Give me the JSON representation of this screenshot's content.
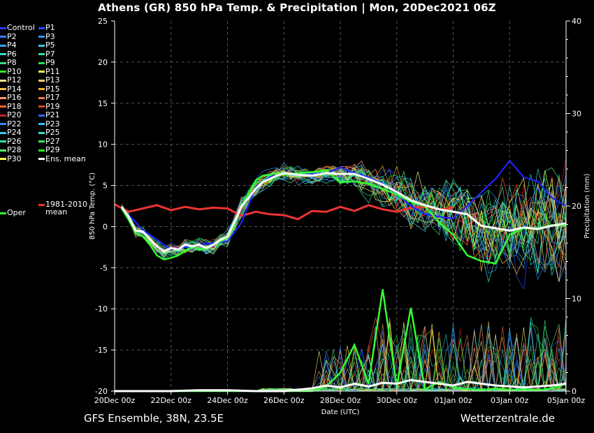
{
  "header": {
    "title": "Athens  (GR)  850 hPa Temp. & Precipitation | Mon, 20Dec2021 06Z"
  },
  "footer": {
    "left": "GFS Ensemble, 38N, 23.5E",
    "right": "Wetterzentrale.de"
  },
  "chart_data": {
    "type": "line",
    "title": "Athens  (GR)  850 hPa Temp. & Precipitation | Mon, 20Dec2021 06Z",
    "xlabel": "Date (UTC)",
    "ylabel": "850 hPa Temp. (°C)",
    "y2label": "Precipitation (mm)",
    "x_ticks": [
      "20Dec 00z",
      "22Dec 00z",
      "24Dec 00z",
      "26Dec 00z",
      "28Dec 00z",
      "30Dec 00z",
      "01Jan 00z",
      "03Jan 00z",
      "05Jan 00z"
    ],
    "xlim_days": [
      0,
      16
    ],
    "ylim": [
      -20,
      25
    ],
    "y_ticks": [
      25,
      20,
      15,
      10,
      5,
      0,
      -5,
      -10,
      -15,
      -20
    ],
    "y2lim": [
      0,
      40
    ],
    "y2_ticks": [
      40,
      30,
      20,
      10,
      0
    ],
    "grid": true,
    "legend_placement": "left-outside",
    "colors": {
      "ens_mean": "#ffffff",
      "oper": "#33ff33",
      "climate": "#ee3333",
      "control": "#2222ff"
    },
    "legend": [
      {
        "label": "Control",
        "color": "#3333ff"
      },
      {
        "label": "P1",
        "color": "#2a4bff"
      },
      {
        "label": "P2",
        "color": "#3a7bff"
      },
      {
        "label": "P3",
        "color": "#3399ff"
      },
      {
        "label": "P4",
        "color": "#33aaee"
      },
      {
        "label": "P5",
        "color": "#33ccdd"
      },
      {
        "label": "P6",
        "color": "#33ddbb"
      },
      {
        "label": "P7",
        "color": "#33ddaa"
      },
      {
        "label": "P8",
        "color": "#33dd88"
      },
      {
        "label": "P9",
        "color": "#33dd55"
      },
      {
        "label": "P10",
        "color": "#33ee22"
      },
      {
        "label": "P11",
        "color": "#ffff55"
      },
      {
        "label": "P12",
        "color": "#ffee88"
      },
      {
        "label": "P13",
        "color": "#ffcc66"
      },
      {
        "label": "P14",
        "color": "#ffbb44"
      },
      {
        "label": "P15",
        "color": "#ffaa33"
      },
      {
        "label": "P16",
        "color": "#ff9966"
      },
      {
        "label": "P17",
        "color": "#ff7744"
      },
      {
        "label": "P18",
        "color": "#ff6633"
      },
      {
        "label": "P19",
        "color": "#dd4422"
      },
      {
        "label": "P20",
        "color": "#cc2222"
      },
      {
        "label": "P21",
        "color": "#3366ff"
      },
      {
        "label": "P22",
        "color": "#3388ff"
      },
      {
        "label": "P23",
        "color": "#33bbff"
      },
      {
        "label": "P24",
        "color": "#33ccee"
      },
      {
        "label": "P25",
        "color": "#33ddcc"
      },
      {
        "label": "P26",
        "color": "#33ddaa"
      },
      {
        "label": "P27",
        "color": "#33ee66"
      },
      {
        "label": "P28",
        "color": "#55ee77"
      },
      {
        "label": "P29",
        "color": "#22ee22"
      },
      {
        "label": "P30",
        "color": "#ffff44"
      },
      {
        "label": "Ens. mean",
        "color": "#ffffff"
      },
      {
        "label": "Oper",
        "color": "#33ff33"
      },
      {
        "label": "1981-2010 mean",
        "color": "#ee3333"
      }
    ],
    "legend_labels": {
      "climate_line1": "1981-2010",
      "climate_line2": "mean"
    },
    "ens_mean_temp": {
      "x": [
        0.25,
        0.5,
        0.75,
        1,
        1.25,
        1.5,
        1.75,
        2,
        2.25,
        2.5,
        2.75,
        3,
        3.25,
        3.5,
        3.75,
        4,
        4.25,
        4.5,
        4.75,
        5,
        5.25,
        5.5,
        5.75,
        6,
        6.5,
        7,
        7.5,
        8,
        8.5,
        9,
        9.5,
        10,
        10.5,
        11,
        11.5,
        12,
        12.5,
        13,
        13.5,
        14,
        14.5,
        15,
        15.5,
        16
      ],
      "y": [
        2.4,
        1.2,
        -0.5,
        -0.6,
        -1.5,
        -2.4,
        -3,
        -2.6,
        -2.8,
        -2.2,
        -2.4,
        -2.2,
        -2.6,
        -2.2,
        -1.6,
        -1.2,
        0.6,
        2.5,
        3.5,
        4.6,
        5.4,
        5.8,
        6.2,
        6.5,
        6.3,
        6.2,
        6.5,
        6.4,
        6.4,
        5.8,
        5.1,
        4.2,
        3.2,
        2.6,
        2.1,
        1.8,
        1.5,
        0.1,
        -0.2,
        -0.5,
        -0.1,
        -0.3,
        0.1,
        0.4
      ]
    },
    "oper_temp": {
      "x": [
        0.25,
        0.5,
        0.75,
        1,
        1.25,
        1.5,
        1.75,
        2,
        2.25,
        2.5,
        2.75,
        3,
        3.25,
        3.5,
        3.75,
        4,
        4.25,
        4.5,
        4.75,
        5,
        5.25,
        5.5,
        5.75,
        6,
        6.5,
        7,
        7.5,
        8,
        8.5,
        9,
        9.5,
        10,
        10.5,
        11,
        11.5,
        12,
        12.5,
        13,
        13.5,
        14,
        14.5,
        15,
        15.5,
        16
      ],
      "y": [
        2.2,
        0.8,
        -0.8,
        -1.2,
        -2.2,
        -3.5,
        -4,
        -3.8,
        -3.5,
        -3,
        -2.4,
        -2.8,
        -2.7,
        -2.2,
        -1.8,
        -1.4,
        0.2,
        2.6,
        4,
        5.6,
        6.2,
        6.3,
        6.5,
        6.3,
        6.5,
        6.6,
        6.8,
        5.4,
        5.5,
        5.2,
        4.6,
        3.9,
        3.0,
        2.5,
        0.5,
        -1.0,
        -3.5,
        -4.2,
        -4.5,
        -1.0,
        -0.2,
        -0.2,
        0.2,
        0.1
      ]
    },
    "control_temp": {
      "x": [
        0.25,
        1,
        2,
        3,
        4,
        4.5,
        5,
        5.5,
        6,
        6.5,
        7,
        7.5,
        8,
        8.5,
        9,
        9.5,
        10,
        10.5,
        11,
        11.5,
        12,
        12.5,
        13,
        13.5,
        14,
        14.5,
        15,
        15.5,
        16
      ],
      "y": [
        2.3,
        -0.4,
        -2.8,
        -2.2,
        -1.8,
        0.5,
        4.8,
        6,
        6.5,
        6.3,
        6.4,
        6.5,
        7.2,
        6.5,
        6.0,
        5.2,
        4.0,
        2.5,
        1.5,
        1.2,
        1.0,
        2.5,
        4.2,
        5.8,
        8.0,
        6.0,
        5.5,
        3.5,
        2.5
      ]
    },
    "climate_mean_temp": {
      "x": [
        0,
        0.5,
        1,
        1.5,
        2,
        2.5,
        3,
        3.5,
        4,
        4.5,
        5,
        5.5,
        6,
        6.5,
        7,
        7.5,
        8,
        8.5,
        9,
        9.5,
        10,
        10.5,
        11,
        11.5,
        12
      ],
      "y": [
        2.7,
        1.8,
        2.2,
        2.6,
        2.0,
        2.4,
        2.1,
        2.3,
        2.2,
        1.3,
        1.8,
        1.5,
        1.4,
        0.9,
        1.9,
        1.8,
        2.4,
        1.9,
        2.6,
        2.1,
        1.8,
        2.3,
        2.4,
        2.1,
        2.3
      ]
    },
    "ens_mean_precip": {
      "x": [
        0,
        1,
        2,
        3,
        4,
        5,
        6,
        7,
        7.5,
        8,
        8.5,
        9,
        9.5,
        10,
        10.5,
        11,
        11.5,
        12,
        12.5,
        13,
        13.5,
        14,
        14.5,
        15,
        15.5,
        16
      ],
      "y": [
        0,
        0,
        0,
        0.1,
        0.1,
        0,
        0,
        0.3,
        0.6,
        0.4,
        0.8,
        0.5,
        0.9,
        0.8,
        1.2,
        1.0,
        0.8,
        0.6,
        1.0,
        0.8,
        0.6,
        0.5,
        0.4,
        0.5,
        0.6,
        0.8
      ]
    },
    "oper_precip": {
      "x": [
        0,
        1,
        2,
        3,
        4,
        5,
        6,
        7,
        7.5,
        8,
        8.5,
        9,
        9.5,
        10,
        10.5,
        11,
        11.5,
        12,
        12.5,
        13,
        13.5,
        14,
        14.5,
        15,
        15.5,
        16
      ],
      "y": [
        0,
        0,
        0,
        0,
        0,
        0,
        0,
        0,
        0.5,
        2.0,
        5.0,
        0.8,
        11.0,
        0.5,
        9.0,
        0.2,
        1.0,
        0.4,
        0.2,
        0.1,
        0.3,
        0.1,
        0.2,
        0.1,
        0.3,
        0.8
      ]
    }
  }
}
